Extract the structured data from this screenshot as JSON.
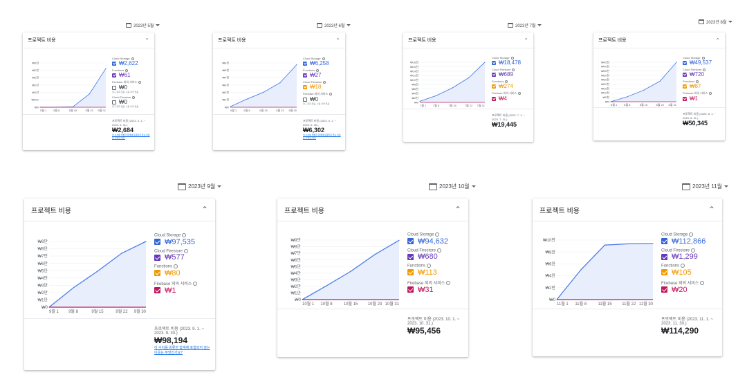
{
  "colors": {
    "storage": "#3367d6",
    "firestore": "#673ab7",
    "functions": "#f29900",
    "other": "#c2185b",
    "line": "#4c7ee8",
    "area": "#e8eefc",
    "other_line": "#c2185b"
  },
  "panels": [
    {
      "month": "2023년 5월",
      "title": "프로젝트 비용",
      "collapse": "⌃",
      "y_ticks": [
        "₩0",
        "₩500",
        "₩1천",
        "₩1천",
        "₩2천",
        "₩2천",
        "₩3천"
      ],
      "x_ticks": [
        "5월 1",
        "5월 8",
        "5월 15",
        "5월 22",
        "5월 31"
      ],
      "legend": [
        {
          "name": "Cloud Storage",
          "value": "₩2,622",
          "checked": true,
          "color": "storage"
        },
        {
          "name": "Functions",
          "value": "₩61",
          "checked": true,
          "color": "firestore"
        },
        {
          "name": "Firebase 외의 서비스",
          "value": "₩0",
          "note": "청구 항목 없음, 사용 내역 없음",
          "checked": false,
          "color": "other"
        },
        {
          "name": "Cloud Firestore",
          "value": "₩0",
          "note": "청구 항목 없음, 사용 내역 없음",
          "checked": false,
          "color": "other"
        }
      ],
      "total_label": "프로젝트 비용 (2023. 5. 1. ~ 2023. 5. 31.)",
      "total_value": "₩2,684",
      "foot_note": "이 수치를 비롯한 합계에 포함되지 않는 이유는 무엇인가요?"
    },
    {
      "month": "2023년 6월",
      "title": "프로젝트 비용",
      "collapse": "⌃",
      "y_ticks": [
        "₩0",
        "₩1천",
        "₩2천",
        "₩3천",
        "₩4천",
        "₩5천",
        "₩6천"
      ],
      "x_ticks": [
        "6월 1",
        "6월 8",
        "6월 15",
        "6월 22",
        "6월 30"
      ],
      "legend": [
        {
          "name": "Cloud Storage",
          "value": "₩6,258",
          "checked": true,
          "color": "storage"
        },
        {
          "name": "Functions",
          "value": "₩27",
          "checked": true,
          "color": "firestore"
        },
        {
          "name": "Cloud Firestore",
          "value": "₩18",
          "checked": true,
          "color": "functions"
        },
        {
          "name": "Firebase 외의 서비스",
          "value": "₩0",
          "note": "청구 항목 없음, 사용 내역 없음",
          "checked": false,
          "color": "other"
        }
      ],
      "total_label": "프로젝트 비용 (2023. 6. 1. ~ 2023. 6. 30.)",
      "total_value": "₩6,302",
      "foot_note": "이 수치를 비롯한 합계에 포함되지 않는 이유는 무엇인가요?"
    },
    {
      "month": "2023년 7월",
      "title": "프로젝트 비용",
      "collapse": "⌃",
      "y_ticks": [
        "₩0",
        "₩2천",
        "₩4천",
        "₩6천",
        "₩8천",
        "₩10천",
        "₩12천",
        "₩14천",
        "₩16천",
        "₩18천"
      ],
      "x_ticks": [
        "7월 1",
        "7월 8",
        "7월 15",
        "7월 22",
        "7월 31"
      ],
      "legend": [
        {
          "name": "Cloud Storage",
          "value": "₩18,478",
          "checked": true,
          "color": "storage"
        },
        {
          "name": "Cloud Firestore",
          "value": "₩689",
          "checked": true,
          "color": "firestore"
        },
        {
          "name": "Functions",
          "value": "₩274",
          "checked": true,
          "color": "functions"
        },
        {
          "name": "Firebase 외의 서비스",
          "value": "₩4",
          "checked": true,
          "color": "other"
        }
      ],
      "total_label": "프로젝트 비용 (2023. 7. 1. ~ 2023. 7. 31.)",
      "total_value": "₩19,445",
      "foot_note": ""
    },
    {
      "month": "2023년 8월",
      "title": "프로젝트 비용",
      "collapse": "⌃",
      "y_ticks": [
        "₩0",
        "₩5천",
        "₩10천",
        "₩15천",
        "₩20천",
        "₩25천",
        "₩30천",
        "₩35천",
        "₩40천",
        "₩45천"
      ],
      "x_ticks": [
        "8월 1",
        "8월 8",
        "8월 15",
        "8월 22",
        "8월 31"
      ],
      "legend": [
        {
          "name": "Cloud Storage",
          "value": "₩49,537",
          "checked": true,
          "color": "storage"
        },
        {
          "name": "Cloud Firestore",
          "value": "₩720",
          "checked": true,
          "color": "firestore"
        },
        {
          "name": "Functions",
          "value": "₩87",
          "checked": true,
          "color": "functions"
        },
        {
          "name": "Firebase 외의 서비스",
          "value": "₩1",
          "checked": true,
          "color": "other"
        }
      ],
      "total_label": "프로젝트 비용 (2023. 8. 1. ~ 2023. 8. 31.)",
      "total_value": "₩50,345",
      "foot_note": ""
    },
    {
      "month": "2023년 9월",
      "title": "프로젝트 비용",
      "collapse": "⌃",
      "y_ticks": [
        "₩0",
        "₩1만",
        "₩2만",
        "₩3만",
        "₩4만",
        "₩5만",
        "₩6만",
        "₩7만",
        "₩8만",
        "₩9만"
      ],
      "x_ticks": [
        "9월 1",
        "9월 8",
        "9월 15",
        "9월 22",
        "9월 30"
      ],
      "legend": [
        {
          "name": "Cloud Storage",
          "value": "₩97,535",
          "checked": true,
          "color": "storage"
        },
        {
          "name": "Cloud Firestore",
          "value": "₩577",
          "checked": true,
          "color": "firestore"
        },
        {
          "name": "Functions",
          "value": "₩80",
          "checked": true,
          "color": "functions"
        },
        {
          "name": "Firebase 외의 서비스",
          "value": "₩1",
          "checked": true,
          "color": "other"
        }
      ],
      "total_label": "프로젝트 비용 (2023. 9. 1. ~ 2023. 9. 30.)",
      "total_value": "₩98,194",
      "foot_note": "이 수치를 비롯한 합계에 포함되지 않는 이유는 무엇인가요?"
    },
    {
      "month": "2023년 10월",
      "title": "프로젝트 비용",
      "collapse": "⌃",
      "y_ticks": [
        "₩0",
        "₩1만",
        "₩2만",
        "₩3만",
        "₩4만",
        "₩5만",
        "₩6만",
        "₩7만",
        "₩8만",
        "₩9만"
      ],
      "x_ticks": [
        "10월 1",
        "10월 8",
        "10월 15",
        "10월 23",
        "10월 31"
      ],
      "legend": [
        {
          "name": "Cloud Storage",
          "value": "₩94,632",
          "checked": true,
          "color": "storage"
        },
        {
          "name": "Cloud Firestore",
          "value": "₩680",
          "checked": true,
          "color": "firestore"
        },
        {
          "name": "Functions",
          "value": "₩113",
          "checked": true,
          "color": "functions"
        },
        {
          "name": "Firebase 외의 서비스",
          "value": "₩31",
          "checked": true,
          "color": "other"
        }
      ],
      "total_label": "프로젝트 비용 (2023. 10. 1. ~ 2023. 10. 31.)",
      "total_value": "₩95,456",
      "foot_note": ""
    },
    {
      "month": "2023년 11월",
      "title": "프로젝트 비용",
      "collapse": "⌃",
      "y_ticks": [
        "₩0",
        "₩2만",
        "₩4만",
        "₩6만",
        "₩8만",
        "₩10만"
      ],
      "x_ticks": [
        "11월 1",
        "11월 8",
        "11월 15",
        "11월 22",
        "11월 30"
      ],
      "legend": [
        {
          "name": "Cloud Storage",
          "value": "₩112,866",
          "checked": true,
          "color": "storage"
        },
        {
          "name": "Cloud Firestore",
          "value": "₩1,299",
          "checked": true,
          "color": "firestore"
        },
        {
          "name": "Functions",
          "value": "₩105",
          "checked": true,
          "color": "functions"
        },
        {
          "name": "Firebase 외의 서비스",
          "value": "₩20",
          "checked": true,
          "color": "other"
        }
      ],
      "total_label": "프로젝트 비용 (2023. 11. 1. ~ 2023. 11. 30.)",
      "total_value": "₩114,290",
      "foot_note": ""
    }
  ],
  "chart_data": [
    {
      "type": "area",
      "x": [
        "5월 1",
        "5월 8",
        "5월 15",
        "5월 22",
        "5월 31"
      ],
      "series": [
        {
          "name": "Cloud Storage",
          "values": [
            0,
            5,
            30,
            900,
            2622
          ]
        }
      ],
      "ylim": [
        0,
        3000
      ]
    },
    {
      "type": "area",
      "x": [
        "6월 1",
        "6월 8",
        "6월 15",
        "6월 22",
        "6월 30"
      ],
      "series": [
        {
          "name": "Cloud Storage",
          "values": [
            100,
            1200,
            2200,
            3600,
            6258
          ]
        }
      ],
      "ylim": [
        0,
        6500
      ]
    },
    {
      "type": "area",
      "x": [
        "7월 1",
        "7월 8",
        "7월 15",
        "7월 22",
        "7월 31"
      ],
      "series": [
        {
          "name": "Cloud Storage",
          "values": [
            500,
            3000,
            6500,
            11000,
            18478
          ]
        }
      ],
      "ylim": [
        0,
        18000
      ]
    },
    {
      "type": "area",
      "x": [
        "8월 1",
        "8월 8",
        "8월 15",
        "8월 22",
        "8月 31"
      ],
      "series": [
        {
          "name": "Cloud Storage",
          "values": [
            0,
            6000,
            14000,
            25000,
            49537
          ]
        }
      ],
      "ylim": [
        0,
        48000
      ]
    },
    {
      "type": "area",
      "x": [
        "9월 1",
        "9월 8",
        "9월 15",
        "9월 22",
        "9월 30"
      ],
      "series": [
        {
          "name": "Cloud Storage",
          "values": [
            0,
            28000,
            52000,
            78000,
            97535
          ]
        }
      ],
      "ylim": [
        0,
        95000
      ]
    },
    {
      "type": "area",
      "x": [
        "10월 1",
        "10월 8",
        "10월 15",
        "10월 23",
        "10월 31"
      ],
      "series": [
        {
          "name": "Cloud Storage",
          "values": [
            0,
            22000,
            45000,
            72000,
            94632
          ]
        }
      ],
      "ylim": [
        0,
        95000
      ]
    },
    {
      "type": "area",
      "x": [
        "11월 1",
        "11월 8",
        "11월 15",
        "11월 22",
        "11월 30"
      ],
      "series": [
        {
          "name": "Cloud Storage",
          "values": [
            0,
            60000,
            110000,
            112500,
            112866
          ]
        }
      ],
      "ylim": [
        0,
        120000
      ]
    }
  ]
}
